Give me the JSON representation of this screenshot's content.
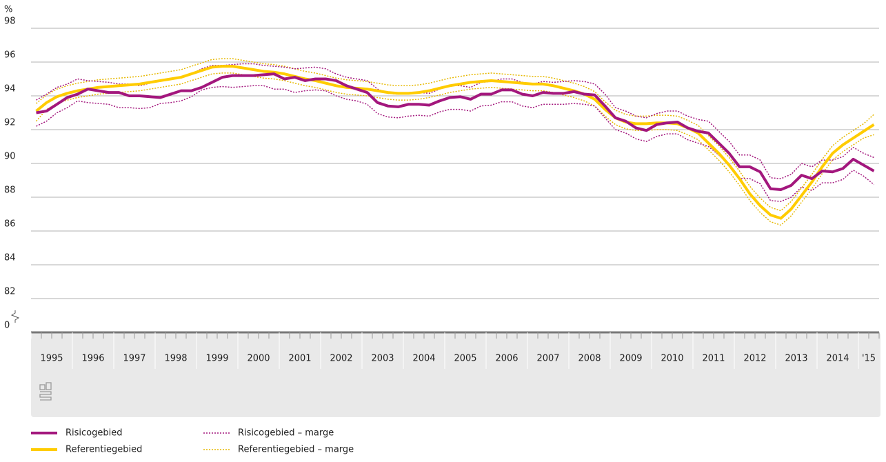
{
  "chart_data": {
    "type": "line",
    "y_label": "%",
    "categories": [
      "1995",
      null,
      null,
      null,
      "1996",
      null,
      null,
      null,
      "1997",
      null,
      null,
      null,
      "1998",
      null,
      null,
      null,
      "1999",
      null,
      null,
      null,
      "2000",
      null,
      null,
      null,
      "2001",
      null,
      null,
      null,
      "2002",
      null,
      null,
      null,
      "2003",
      null,
      null,
      null,
      "2004",
      null,
      null,
      null,
      "2005",
      null,
      null,
      null,
      "2006",
      null,
      null,
      null,
      "2007",
      null,
      null,
      null,
      "2008",
      null,
      null,
      null,
      "2009",
      null,
      null,
      null,
      "2010",
      null,
      null,
      null,
      "2011",
      null,
      null,
      null,
      "2012",
      null,
      null,
      null,
      "2013",
      null,
      null,
      null,
      "2014",
      null,
      null,
      null,
      "'15",
      null
    ],
    "ylim": [
      0,
      98
    ],
    "y_break": [
      0,
      80
    ],
    "yticks": [
      0,
      82,
      84,
      86,
      88,
      90,
      92,
      94,
      96,
      98
    ],
    "grid": true,
    "series": [
      {
        "name": "Risicogebied",
        "color": "#a3177d",
        "style": "solid",
        "values": [
          93.0,
          93.1,
          93.5,
          93.9,
          94.1,
          94.4,
          94.3,
          94.2,
          94.2,
          94.0,
          94.0,
          93.95,
          93.9,
          94.1,
          94.3,
          94.3,
          94.5,
          94.8,
          95.1,
          95.2,
          95.2,
          95.2,
          95.25,
          95.3,
          95.0,
          95.1,
          94.9,
          95.0,
          95.0,
          94.9,
          94.6,
          94.4,
          94.2,
          93.6,
          93.4,
          93.35,
          93.5,
          93.5,
          93.45,
          93.7,
          93.9,
          93.95,
          93.8,
          94.1,
          94.1,
          94.35,
          94.35,
          94.1,
          94.0,
          94.2,
          94.15,
          94.15,
          94.25,
          94.1,
          94.05,
          93.4,
          92.7,
          92.5,
          92.1,
          91.95,
          92.3,
          92.4,
          92.45,
          92.1,
          91.9,
          91.8,
          91.2,
          90.6,
          89.8,
          89.8,
          89.5,
          88.5,
          88.45,
          88.7,
          89.3,
          89.1,
          89.55,
          89.5,
          89.7,
          90.25,
          89.9,
          89.55
        ]
      },
      {
        "name": "Referentiegebied",
        "color": "#ffcc00",
        "style": "solid",
        "values": [
          93.1,
          93.6,
          93.95,
          94.15,
          94.3,
          94.4,
          94.5,
          94.55,
          94.6,
          94.65,
          94.7,
          94.8,
          94.9,
          95.0,
          95.1,
          95.3,
          95.5,
          95.7,
          95.75,
          95.75,
          95.65,
          95.55,
          95.45,
          95.4,
          95.3,
          95.15,
          95.0,
          94.9,
          94.75,
          94.6,
          94.5,
          94.45,
          94.4,
          94.3,
          94.2,
          94.15,
          94.15,
          94.2,
          94.3,
          94.45,
          94.6,
          94.7,
          94.8,
          94.85,
          94.9,
          94.85,
          94.8,
          94.75,
          94.7,
          94.7,
          94.6,
          94.45,
          94.3,
          94.1,
          93.8,
          93.2,
          92.7,
          92.45,
          92.35,
          92.35,
          92.4,
          92.4,
          92.35,
          92.1,
          91.8,
          91.2,
          90.6,
          89.9,
          89.1,
          88.2,
          87.5,
          86.95,
          86.75,
          87.3,
          88.1,
          88.9,
          89.8,
          90.6,
          91.1,
          91.5,
          91.9,
          92.3
        ]
      },
      {
        "name": "Risicogebied – marge",
        "color": "#a3177d",
        "style": "dotted",
        "legend_group": "Risicogebied – marge",
        "values": [
          93.75,
          94.1,
          94.5,
          94.7,
          95.0,
          94.9,
          94.85,
          94.8,
          94.7,
          94.7,
          94.6,
          94.75,
          94.9,
          95.0,
          95.1,
          95.3,
          95.6,
          95.8,
          95.8,
          95.85,
          95.9,
          95.9,
          95.8,
          95.75,
          95.7,
          95.6,
          95.65,
          95.7,
          95.6,
          95.3,
          95.1,
          95.0,
          94.9,
          94.4,
          94.15,
          94.1,
          94.2,
          94.2,
          94.15,
          94.4,
          94.6,
          94.6,
          94.5,
          94.8,
          94.85,
          95.0,
          95.0,
          94.8,
          94.7,
          94.85,
          94.8,
          94.85,
          94.9,
          94.85,
          94.7,
          94.1,
          93.3,
          93.1,
          92.8,
          92.7,
          92.95,
          93.1,
          93.1,
          92.8,
          92.6,
          92.5,
          91.9,
          91.3,
          90.5,
          90.5,
          90.2,
          89.15,
          89.1,
          89.35,
          90.0,
          89.8,
          90.2,
          90.2,
          90.4,
          90.95,
          90.6,
          90.35
        ]
      },
      {
        "color": "#a3177d",
        "style": "dotted",
        "values": [
          92.2,
          92.5,
          93.0,
          93.3,
          93.7,
          93.6,
          93.55,
          93.5,
          93.3,
          93.3,
          93.25,
          93.3,
          93.55,
          93.6,
          93.7,
          93.95,
          94.35,
          94.5,
          94.55,
          94.5,
          94.55,
          94.6,
          94.6,
          94.4,
          94.4,
          94.2,
          94.3,
          94.35,
          94.3,
          94.0,
          93.8,
          93.7,
          93.5,
          92.95,
          92.75,
          92.7,
          92.8,
          92.85,
          92.8,
          93.05,
          93.2,
          93.2,
          93.1,
          93.4,
          93.45,
          93.65,
          93.65,
          93.4,
          93.3,
          93.5,
          93.5,
          93.5,
          93.55,
          93.5,
          93.4,
          92.7,
          92.0,
          91.8,
          91.45,
          91.3,
          91.6,
          91.75,
          91.75,
          91.4,
          91.2,
          91.0,
          90.5,
          89.9,
          89.1,
          89.1,
          88.8,
          87.8,
          87.75,
          88.0,
          88.6,
          88.4,
          88.85,
          88.85,
          89.05,
          89.6,
          89.25,
          88.75
        ]
      },
      {
        "name": "Referentiegebied – marge",
        "color": "#e6b800",
        "style": "dotted",
        "values": [
          93.55,
          94.05,
          94.4,
          94.6,
          94.75,
          94.85,
          94.95,
          95.0,
          95.05,
          95.1,
          95.15,
          95.25,
          95.35,
          95.45,
          95.55,
          95.75,
          95.95,
          96.15,
          96.2,
          96.2,
          96.1,
          96.0,
          95.9,
          95.85,
          95.75,
          95.6,
          95.45,
          95.35,
          95.2,
          95.05,
          94.95,
          94.9,
          94.85,
          94.75,
          94.65,
          94.6,
          94.6,
          94.65,
          94.75,
          94.9,
          95.05,
          95.15,
          95.25,
          95.3,
          95.35,
          95.3,
          95.25,
          95.2,
          95.15,
          95.15,
          95.05,
          94.9,
          94.75,
          94.55,
          94.25,
          93.65,
          93.15,
          92.9,
          92.8,
          92.8,
          92.85,
          92.85,
          92.8,
          92.55,
          92.25,
          91.65,
          91.05,
          90.35,
          89.55,
          88.65,
          87.95,
          87.4,
          87.2,
          87.75,
          88.55,
          89.35,
          90.25,
          91.05,
          91.55,
          91.95,
          92.35,
          92.9
        ]
      },
      {
        "color": "#e6b800",
        "style": "dotted",
        "values": [
          92.5,
          93.2,
          93.55,
          93.75,
          93.9,
          94.0,
          94.1,
          94.15,
          94.2,
          94.25,
          94.3,
          94.4,
          94.5,
          94.6,
          94.7,
          94.9,
          95.1,
          95.3,
          95.35,
          95.35,
          95.25,
          95.15,
          95.05,
          95.0,
          94.9,
          94.75,
          94.6,
          94.5,
          94.35,
          94.2,
          94.1,
          94.05,
          94.0,
          93.9,
          93.8,
          93.75,
          93.75,
          93.8,
          93.9,
          94.05,
          94.2,
          94.3,
          94.4,
          94.45,
          94.5,
          94.45,
          94.4,
          94.35,
          94.3,
          94.3,
          94.2,
          94.05,
          93.9,
          93.7,
          93.4,
          92.8,
          92.3,
          92.05,
          91.95,
          91.95,
          92.0,
          92.0,
          91.95,
          91.7,
          91.4,
          90.8,
          90.2,
          89.5,
          88.7,
          87.8,
          87.1,
          86.55,
          86.35,
          86.9,
          87.7,
          88.5,
          89.4,
          90.2,
          90.7,
          91.1,
          91.5,
          91.7
        ]
      }
    ]
  }
}
